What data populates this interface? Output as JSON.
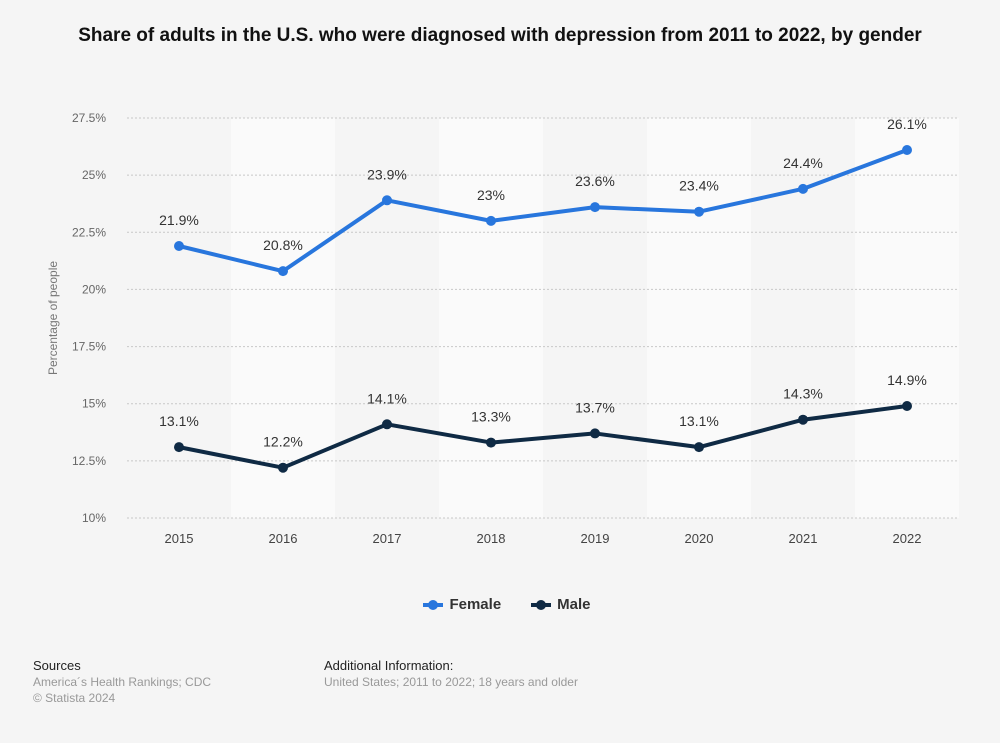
{
  "chart_data": {
    "type": "line",
    "title": "Share of adults in the U.S. who were diagnosed with depression from 2011 to 2022, by gender",
    "xlabel": "",
    "ylabel": "Percentage of people",
    "categories": [
      "2015",
      "2016",
      "2017",
      "2018",
      "2019",
      "2020",
      "2021",
      "2022"
    ],
    "ylim": [
      10,
      27.5
    ],
    "yticks": [
      10,
      12.5,
      15,
      17.5,
      20,
      22.5,
      25,
      27.5
    ],
    "ytick_labels": [
      "10%",
      "12.5%",
      "15%",
      "17.5%",
      "20%",
      "22.5%",
      "25%",
      "27.5%"
    ],
    "series": [
      {
        "name": "Female",
        "color": "#2876dd",
        "values": [
          21.9,
          20.8,
          23.9,
          23,
          23.6,
          23.4,
          24.4,
          26.1
        ],
        "labels": [
          "21.9%",
          "20.8%",
          "23.9%",
          "23%",
          "23.6%",
          "23.4%",
          "24.4%",
          "26.1%"
        ]
      },
      {
        "name": "Male",
        "color": "#0f2a44",
        "values": [
          13.1,
          12.2,
          14.1,
          13.3,
          13.7,
          13.1,
          14.3,
          14.9
        ],
        "labels": [
          "13.1%",
          "12.2%",
          "14.1%",
          "13.3%",
          "13.7%",
          "13.1%",
          "14.3%",
          "14.9%"
        ]
      }
    ],
    "grid": true,
    "legend": "bottom"
  },
  "footer": {
    "sources_heading": "Sources",
    "sources": "America´s Health Rankings; CDC",
    "copyright": "© Statista 2024",
    "info_heading": "Additional Information:",
    "info": "United States; 2011 to 2022; 18 years and older"
  }
}
